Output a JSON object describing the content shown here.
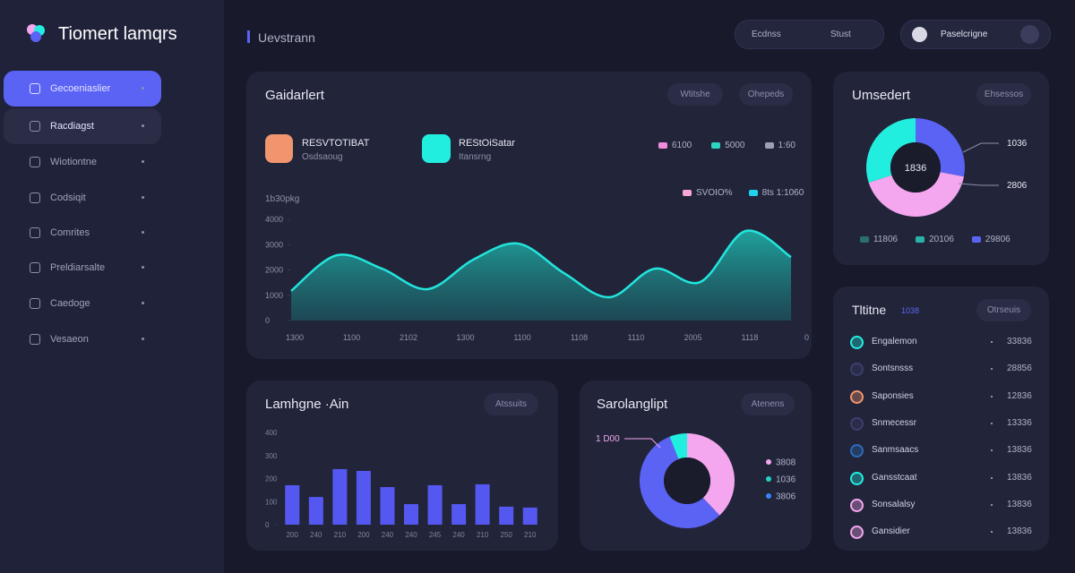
{
  "sidebar": {
    "brand": "Tiomert lamqrs",
    "nav": [
      "Gecoeniaslier",
      "Racdiagst",
      "Wiotiontne",
      "Codsiqit",
      "Comrites",
      "Preldiarsalte",
      "Caedoge",
      "Vesaeon"
    ]
  },
  "header": {
    "title": "Uevstrann",
    "search": [
      "Ecdnss",
      "Stust"
    ],
    "user": "Paselcrigne"
  },
  "main_chart": {
    "type": "area",
    "title": "Gaidarlert",
    "buttons": [
      "Wtitshe",
      "Ohepeds"
    ],
    "stats": [
      {
        "label": "RESVTOTIBAT",
        "sub": "Osdsaoug"
      },
      {
        "label": "REStOiSatar",
        "sub": "Itansrng"
      }
    ],
    "legend": [
      {
        "name": "6100",
        "color": "#f28bdc"
      },
      {
        "name": "5000",
        "color": "#2dd4bf"
      },
      {
        "name": "1:60",
        "color": "#9aa0b8"
      }
    ],
    "legend2": [
      {
        "name": "SVOIO%",
        "color": "#f9a8d4"
      },
      {
        "name": "8ts 1:1060",
        "color": "#22d3ee"
      }
    ],
    "y_label": "1b30pkg",
    "ylim": [
      0,
      4000
    ],
    "yticks": [
      0,
      1000,
      2000,
      3000,
      4000
    ],
    "x_labels": [
      "1300",
      "1100",
      "2102",
      "1300",
      "1100",
      "1108",
      "1110",
      "2005",
      "1118",
      "0"
    ],
    "color": "#22e5dc",
    "values": [
      1170,
      2580,
      2050,
      1240,
      2400,
      3040,
      1880,
      920,
      2050,
      1520,
      3540,
      2510
    ]
  },
  "donut_a": {
    "type": "donut",
    "title": "Umsedert",
    "button": "Ehsessos",
    "center": "1836",
    "callouts": [
      "1036",
      "2806"
    ],
    "segments": [
      {
        "color": "#5b63f5",
        "value": 28
      },
      {
        "color": "#f4a6ee",
        "value": 42
      },
      {
        "color": "#22eee0",
        "value": 30
      }
    ],
    "legend": [
      {
        "name": "11806",
        "color": "#2b6f6a"
      },
      {
        "name": "20106",
        "color": "#2bb3a8"
      },
      {
        "name": "29806",
        "color": "#5b63f5"
      }
    ]
  },
  "list": {
    "title": "Tltitne",
    "badge": "1038",
    "button": "Otrseuis",
    "items": [
      {
        "name": "Engalemon",
        "value": "33836",
        "color": "#22eee0"
      },
      {
        "name": "Sontsnsss",
        "value": "28856",
        "color": "#3b3f6b"
      },
      {
        "name": "Saponsies",
        "value": "12836",
        "color": "#f0956e"
      },
      {
        "name": "Snmecessr",
        "value": "13336",
        "color": "#3b3f6b"
      },
      {
        "name": "Sanmsaacs",
        "value": "13836",
        "color": "#2e6bb8"
      },
      {
        "name": "Gansstcaat",
        "value": "13836",
        "color": "#22eee0"
      },
      {
        "name": "Sonsalalsy",
        "value": "13836",
        "color": "#f4a6ee"
      },
      {
        "name": "Gansidier",
        "value": "13836",
        "color": "#f4a6ee"
      }
    ]
  },
  "bar_chart": {
    "type": "bar",
    "title": "Lamhgne ·Ain",
    "button": "Atssuits",
    "ylim": [
      0,
      400
    ],
    "yticks": [
      0,
      100,
      200,
      300,
      400
    ],
    "categories": [
      "200",
      "240",
      "210",
      "200",
      "240",
      "240",
      "245",
      "240",
      "210",
      "250",
      "210"
    ],
    "values": [
      171,
      120,
      241,
      233,
      163,
      89,
      171,
      89,
      175,
      78,
      74
    ],
    "color": "#5558f0"
  },
  "donut_b": {
    "type": "donut",
    "title": "Sarolanglipt",
    "button": "Atenens",
    "callout": "1 D00",
    "segments": [
      {
        "color": "#f4a6ee",
        "value": 38
      },
      {
        "color": "#5b63f5",
        "value": 56
      },
      {
        "color": "#22eee0",
        "value": 6
      }
    ],
    "legend": [
      {
        "name": "3808",
        "color": "#f4a6ee"
      },
      {
        "name": "1036",
        "color": "#22d3c4"
      },
      {
        "name": "3806",
        "color": "#3b82f6"
      }
    ]
  }
}
